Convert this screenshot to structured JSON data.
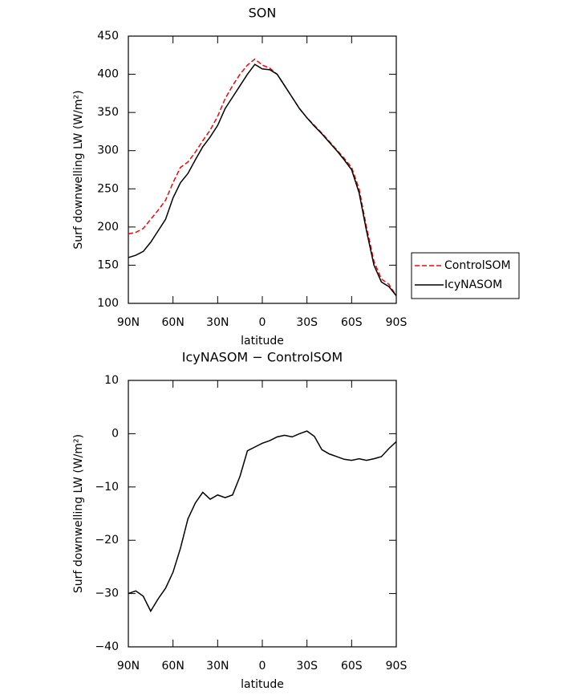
{
  "chart_data": [
    {
      "type": "line",
      "title": "SON",
      "xlabel": "latitude",
      "ylabel": "Surf downwelling LW (W/m²)",
      "x": [
        90,
        85,
        80,
        75,
        70,
        65,
        60,
        55,
        50,
        45,
        40,
        35,
        30,
        25,
        20,
        15,
        10,
        5,
        0,
        -5,
        -10,
        -15,
        -20,
        -25,
        -30,
        -35,
        -40,
        -45,
        -50,
        -55,
        -60,
        -65,
        -70,
        -75,
        -80,
        -85,
        -90
      ],
      "xlim": [
        90,
        -90
      ],
      "xticks": [
        {
          "value": 90,
          "label": "90N"
        },
        {
          "value": 60,
          "label": "60N"
        },
        {
          "value": 30,
          "label": "30N"
        },
        0,
        {
          "value": -30,
          "label": "30S"
        },
        {
          "value": -60,
          "label": "60S"
        },
        {
          "value": -90,
          "label": "90S"
        }
      ],
      "ylim": [
        100,
        450
      ],
      "yticks": [
        100,
        150,
        200,
        250,
        300,
        350,
        400,
        450
      ],
      "legend": "right",
      "series": [
        {
          "name": "ControlSOM",
          "color": "#ff0000",
          "line_style": "dashed",
          "values": [
            191,
            193,
            198,
            210,
            222,
            235,
            258,
            278,
            285,
            298,
            313,
            327,
            345,
            368,
            385,
            400,
            412,
            420,
            412,
            408,
            400,
            385,
            370,
            355,
            343,
            333,
            323,
            312,
            301,
            290,
            278,
            250,
            200,
            155,
            132,
            125,
            110
          ]
        },
        {
          "name": "IcyNASOM",
          "color": "#000000",
          "line_style": "solid",
          "values": [
            160,
            163,
            168,
            180,
            195,
            210,
            238,
            258,
            270,
            288,
            305,
            318,
            333,
            355,
            370,
            385,
            400,
            413,
            407,
            406,
            400,
            385,
            370,
            355,
            343,
            332,
            322,
            311,
            300,
            288,
            275,
            245,
            195,
            150,
            128,
            122,
            110
          ]
        }
      ]
    },
    {
      "type": "line",
      "title": "IcyNASOM − ControlSOM",
      "xlabel": "latitude",
      "ylabel": "Surf downwelling LW (W/m²)",
      "x": [
        90,
        85,
        80,
        75,
        70,
        65,
        60,
        55,
        50,
        45,
        40,
        35,
        30,
        25,
        20,
        15,
        10,
        5,
        0,
        -5,
        -10,
        -15,
        -20,
        -25,
        -30,
        -35,
        -40,
        -45,
        -50,
        -55,
        -60,
        -65,
        -70,
        -75,
        -80,
        -85,
        -90
      ],
      "xlim": [
        90,
        -90
      ],
      "xticks": [
        {
          "value": 90,
          "label": "90N"
        },
        {
          "value": 60,
          "label": "60N"
        },
        {
          "value": 30,
          "label": "30N"
        },
        0,
        {
          "value": -30,
          "label": "30S"
        },
        {
          "value": -60,
          "label": "60S"
        },
        {
          "value": -90,
          "label": "90S"
        }
      ],
      "ylim": [
        -40,
        10
      ],
      "yticks": [
        {
          "value": -40,
          "label": "−40"
        },
        {
          "value": -30,
          "label": "−30"
        },
        {
          "value": -20,
          "label": "−20"
        },
        {
          "value": -10,
          "label": "−10"
        },
        0,
        10
      ],
      "series": [
        {
          "color": "#000000",
          "line_style": "solid",
          "values": [
            -30,
            -29.5,
            -30.5,
            -33.3,
            -31,
            -29,
            -26,
            -21.5,
            -16,
            -13,
            -11,
            -12.3,
            -11.5,
            -12,
            -11.5,
            -8,
            -3.2,
            -2.5,
            -1.8,
            -1.3,
            -0.6,
            -0.3,
            -0.6,
            0,
            0.5,
            -0.5,
            -3,
            -3.8,
            -4.3,
            -4.8,
            -5,
            -4.7,
            -5,
            -4.7,
            -4.3,
            -2.8,
            -1.5
          ]
        }
      ]
    }
  ]
}
